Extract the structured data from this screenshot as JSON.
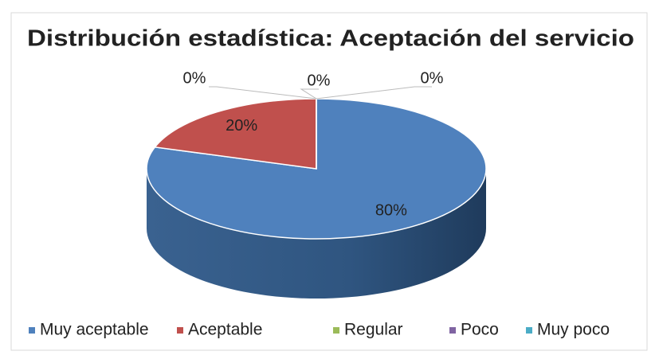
{
  "chart_data": {
    "type": "pie",
    "title": "Distribución estadística: Aceptación del servicio",
    "categories": [
      "Muy aceptable",
      "Aceptable",
      "Regular",
      "Poco",
      "Muy poco"
    ],
    "values": [
      80,
      20,
      0,
      0,
      0
    ],
    "value_labels": [
      "80%",
      "20%",
      "0%",
      "0%",
      "0%"
    ],
    "colors": [
      "#4f81bd",
      "#c0504d",
      "#9bbb59",
      "#8064a2",
      "#4bacc6"
    ],
    "legend": "bottom"
  }
}
